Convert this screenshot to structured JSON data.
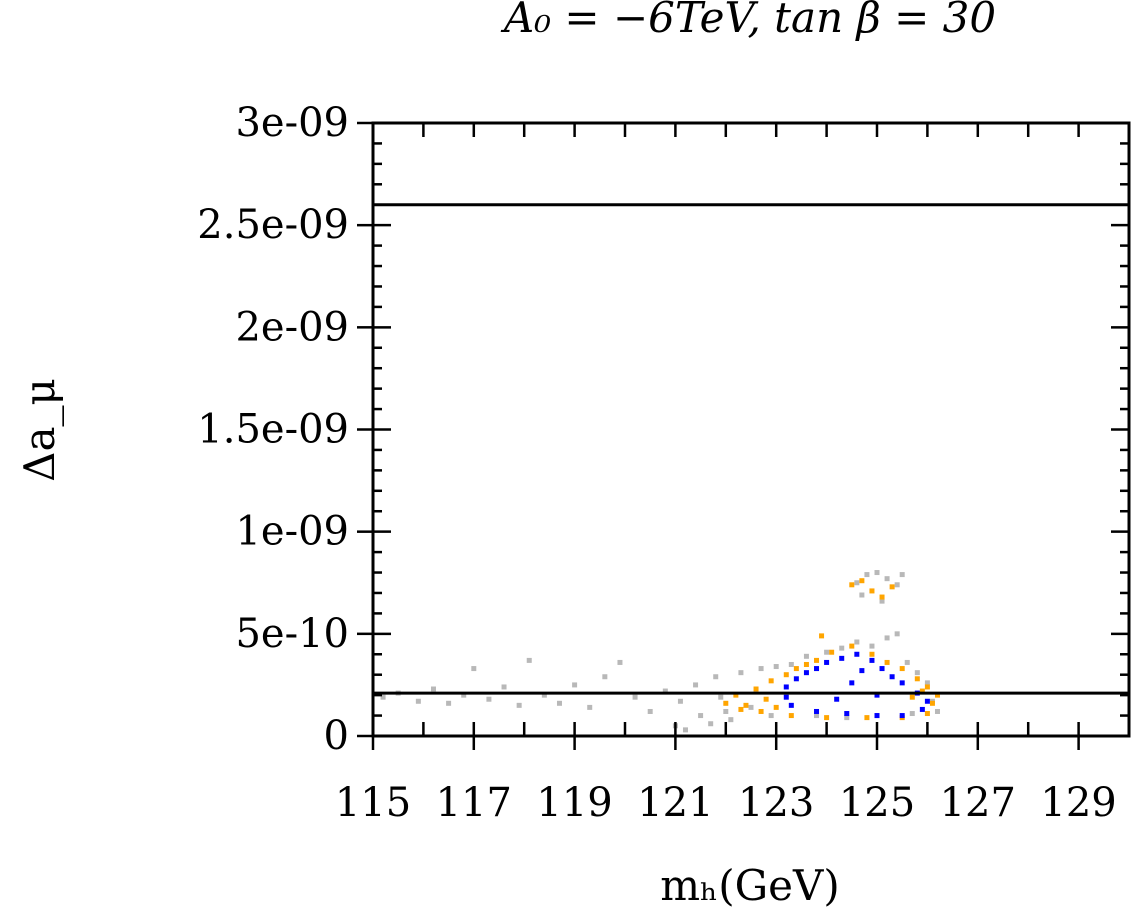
{
  "chart_data": {
    "type": "scatter",
    "title": "A₀ = −6TeV, tan β = 30",
    "xlabel": "mₕ(GeV)",
    "ylabel": "Δa_μ",
    "xlim": [
      115,
      130
    ],
    "ylim": [
      0,
      3e-09
    ],
    "x_ticks": [
      115,
      117,
      119,
      121,
      123,
      125,
      127,
      129
    ],
    "x_tick_labels": [
      "115",
      "117",
      "119",
      "121",
      "123",
      "125",
      "127",
      "129"
    ],
    "y_ticks": [
      0,
      5e-10,
      1e-09,
      1.5e-09,
      2e-09,
      2.5e-09,
      3e-09
    ],
    "y_tick_labels": [
      "0",
      "5e-10",
      "1e-09",
      "1.5e-09",
      "2e-09",
      "2.5e-09",
      "3e-09"
    ],
    "grid": false,
    "legend": "none",
    "reference_lines": [
      {
        "orientation": "horizontal",
        "y": 2.6e-09,
        "color": "#000000"
      },
      {
        "orientation": "horizontal",
        "y": 2.1e-10,
        "color": "#000000"
      }
    ],
    "series": [
      {
        "color": "#b8b8b8",
        "points": [
          [
            115.2,
            1.9e-10
          ],
          [
            115.5,
            2.1e-10
          ],
          [
            115.9,
            1.7e-10
          ],
          [
            116.2,
            2.3e-10
          ],
          [
            116.5,
            1.6e-10
          ],
          [
            116.8,
            2e-10
          ],
          [
            117.0,
            3.3e-10
          ],
          [
            117.3,
            1.8e-10
          ],
          [
            117.6,
            2.4e-10
          ],
          [
            117.9,
            1.5e-10
          ],
          [
            118.1,
            3.7e-10
          ],
          [
            118.4,
            2e-10
          ],
          [
            118.7,
            1.6e-10
          ],
          [
            119.0,
            2.5e-10
          ],
          [
            119.3,
            1.4e-10
          ],
          [
            119.6,
            2.9e-10
          ],
          [
            119.9,
            3.6e-10
          ],
          [
            120.2,
            1.9e-10
          ],
          [
            120.5,
            1.2e-10
          ],
          [
            120.8,
            2.2e-10
          ],
          [
            121.0,
            5e-11
          ],
          [
            121.1,
            1.7e-10
          ],
          [
            121.2,
            3e-11
          ],
          [
            121.4,
            2.5e-10
          ],
          [
            121.5,
            1e-10
          ],
          [
            121.7,
            6e-11
          ],
          [
            121.8,
            2.9e-10
          ],
          [
            122.0,
            1.2e-10
          ],
          [
            122.1,
            8e-11
          ],
          [
            122.3,
            3.1e-10
          ],
          [
            122.5,
            1.4e-10
          ],
          [
            122.7,
            3.3e-10
          ],
          [
            122.9,
            1e-10
          ],
          [
            123.0,
            3.4e-10
          ],
          [
            123.3,
            3.5e-10
          ],
          [
            123.6,
            3.9e-10
          ],
          [
            124.0,
            4.1e-10
          ],
          [
            124.3,
            4.3e-10
          ],
          [
            124.6,
            4.6e-10
          ],
          [
            124.9,
            4.4e-10
          ],
          [
            125.2,
            4.8e-10
          ],
          [
            125.4,
            5e-10
          ],
          [
            125.6,
            3.6e-10
          ],
          [
            125.8,
            3.1e-10
          ],
          [
            126.0,
            2.6e-10
          ],
          [
            126.1,
            1.7e-10
          ],
          [
            126.2,
            1.2e-10
          ],
          [
            124.6,
            7.5e-10
          ],
          [
            124.8,
            7.9e-10
          ],
          [
            125.0,
            8e-10
          ],
          [
            125.2,
            7.7e-10
          ],
          [
            125.4,
            7.4e-10
          ],
          [
            125.5,
            7.9e-10
          ],
          [
            125.1,
            6.6e-10
          ],
          [
            124.7,
            6.9e-10
          ],
          [
            123.8,
            1e-10
          ],
          [
            124.4,
            9e-11
          ],
          [
            125.0,
            1e-10
          ],
          [
            125.7,
            1.1e-10
          ],
          [
            121.9,
            1.9e-10
          ]
        ]
      },
      {
        "color": "#ffa500",
        "points": [
          [
            122.0,
            1.6e-10
          ],
          [
            122.2,
            2e-10
          ],
          [
            122.4,
            1.5e-10
          ],
          [
            122.6,
            2.3e-10
          ],
          [
            122.8,
            1.8e-10
          ],
          [
            122.9,
            2.7e-10
          ],
          [
            123.0,
            1.4e-10
          ],
          [
            123.2,
            3e-10
          ],
          [
            123.4,
            3.3e-10
          ],
          [
            123.6,
            3.5e-10
          ],
          [
            123.8,
            3.7e-10
          ],
          [
            124.1,
            4.1e-10
          ],
          [
            124.5,
            4.4e-10
          ],
          [
            124.9,
            4e-10
          ],
          [
            125.2,
            3.6e-10
          ],
          [
            125.5,
            3.3e-10
          ],
          [
            125.8,
            2.8e-10
          ],
          [
            126.0,
            2.4e-10
          ],
          [
            126.1,
            1.6e-10
          ],
          [
            126.0,
            1.1e-10
          ],
          [
            125.5,
            9e-11
          ],
          [
            124.8,
            9e-11
          ],
          [
            124.0,
            9e-11
          ],
          [
            123.3,
            1e-10
          ],
          [
            124.7,
            7.6e-10
          ],
          [
            124.9,
            7.1e-10
          ],
          [
            125.1,
            6.8e-10
          ],
          [
            125.3,
            7.3e-10
          ],
          [
            124.5,
            7.4e-10
          ],
          [
            123.9,
            4.9e-10
          ],
          [
            122.3,
            1.3e-10
          ],
          [
            122.7,
            1.2e-10
          ],
          [
            125.7,
            1.9e-10
          ],
          [
            125.9,
            2.2e-10
          ],
          [
            126.2,
            2e-10
          ]
        ]
      },
      {
        "color": "#0000ff",
        "points": [
          [
            123.2,
            2.4e-10
          ],
          [
            123.4,
            2.8e-10
          ],
          [
            123.6,
            3.1e-10
          ],
          [
            123.8,
            3.3e-10
          ],
          [
            124.0,
            3.6e-10
          ],
          [
            124.3,
            3.8e-10
          ],
          [
            124.6,
            4e-10
          ],
          [
            124.9,
            3.7e-10
          ],
          [
            125.1,
            3.3e-10
          ],
          [
            125.3,
            2.9e-10
          ],
          [
            125.5,
            2.6e-10
          ],
          [
            125.8,
            2.1e-10
          ],
          [
            126.0,
            1.7e-10
          ],
          [
            125.9,
            1.3e-10
          ],
          [
            125.5,
            1e-10
          ],
          [
            125.0,
            1e-10
          ],
          [
            124.4,
            1.1e-10
          ],
          [
            123.8,
            1.2e-10
          ],
          [
            123.3,
            1.5e-10
          ],
          [
            123.2,
            1.9e-10
          ],
          [
            124.5,
            2.6e-10
          ],
          [
            124.2,
            1.8e-10
          ],
          [
            125.0,
            2e-10
          ],
          [
            124.7,
            3.2e-10
          ]
        ]
      }
    ]
  }
}
